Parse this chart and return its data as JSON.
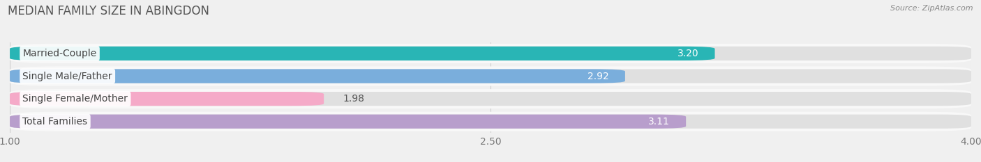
{
  "title": "MEDIAN FAMILY SIZE IN ABINGDON",
  "source": "Source: ZipAtlas.com",
  "categories": [
    "Married-Couple",
    "Single Male/Father",
    "Single Female/Mother",
    "Total Families"
  ],
  "values": [
    3.2,
    2.92,
    1.98,
    3.11
  ],
  "bar_colors": [
    "#29b5b5",
    "#7aaedc",
    "#f5aac8",
    "#b89ecc"
  ],
  "bar_height": 0.62,
  "xlim": [
    1.0,
    4.0
  ],
  "xticks": [
    1.0,
    2.5,
    4.0
  ],
  "xticklabels": [
    "1.00",
    "2.50",
    "4.00"
  ],
  "label_fontsize": 10,
  "value_fontsize": 10,
  "title_fontsize": 12,
  "background_color": "#f0f0f0",
  "bar_background_color": "#e0e0e0",
  "grid_color": "#cccccc",
  "row_bg_color": "#f8f8f8"
}
